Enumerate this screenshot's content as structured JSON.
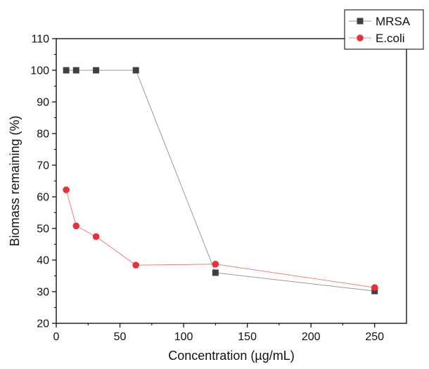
{
  "chart_data": {
    "type": "line",
    "xlabel": "Concentration (µg/mL)",
    "ylabel": "Biomass remaining (%)",
    "xlim": [
      0,
      275
    ],
    "ylim": [
      20,
      110
    ],
    "x_ticks": [
      0,
      50,
      100,
      150,
      200,
      250
    ],
    "y_ticks": [
      20,
      30,
      40,
      50,
      60,
      70,
      80,
      90,
      100,
      110
    ],
    "grid": false,
    "legend_position": "top-right",
    "series": [
      {
        "name": "MRSA",
        "color": "#404040",
        "line_color": "#9a9a9a",
        "marker": "square",
        "x": [
          7.8,
          15.6,
          31.25,
          62.5,
          125,
          250
        ],
        "y": [
          100,
          100,
          100,
          100,
          36,
          30.2
        ]
      },
      {
        "name": "E.coli",
        "color": "#e8303a",
        "line_color": "#f08080",
        "marker": "circle",
        "x": [
          7.8,
          15.6,
          31.25,
          62.5,
          125,
          250
        ],
        "y": [
          62.2,
          50.8,
          47.4,
          38.4,
          38.7,
          31.3
        ]
      }
    ]
  }
}
